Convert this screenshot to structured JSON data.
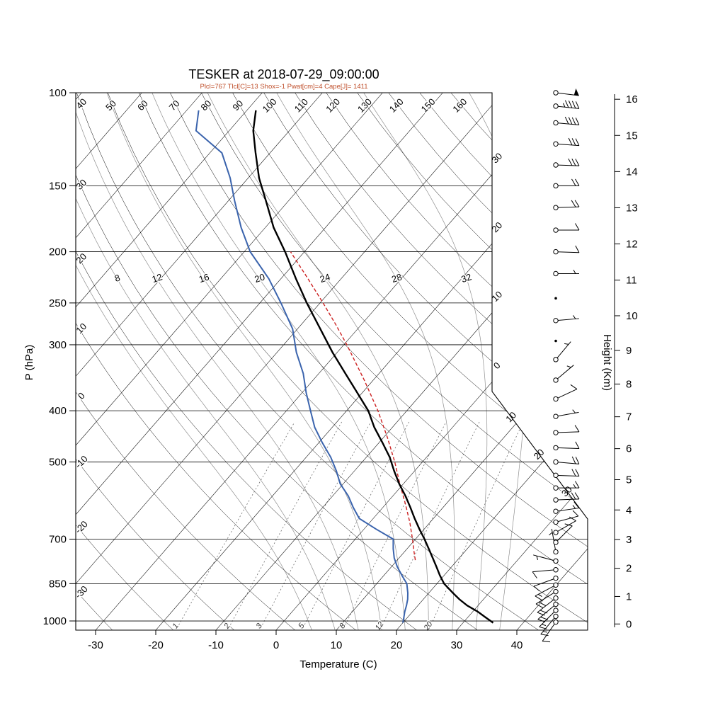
{
  "title": "TESKER at 2018-07-29_09:00:00",
  "subtitle": "Plcl=767 Tlcl[C]=13 Shox=-1 Pwat[cm]=4 Cape[J]= 1411",
  "indices": {
    "Plcl": 767,
    "Tlcl_C": 13,
    "Shox": -1,
    "Pwat_cm": 4,
    "Cape_J": 1411
  },
  "axes": {
    "pressure_label": "P (hPa)",
    "pressure_ticks": [
      100,
      150,
      200,
      250,
      300,
      400,
      500,
      700,
      850,
      1000
    ],
    "temperature_label": "Temperature (C)",
    "temperature_ticks": [
      -30,
      -20,
      -10,
      0,
      10,
      20,
      30,
      40
    ],
    "height_label": "Height (Km)",
    "height_ticks": [
      0,
      1,
      2,
      3,
      4,
      5,
      6,
      7,
      8,
      9,
      10,
      11,
      12,
      13,
      14,
      15,
      16
    ]
  },
  "grid": {
    "dry_adiabat_top_labels": [
      50,
      60,
      70,
      80,
      90,
      100,
      110,
      120,
      130,
      140,
      150,
      160
    ],
    "dry_adiabat_left_labels": [
      40,
      30,
      20,
      10,
      0,
      -10,
      -20,
      -30
    ],
    "isotherm_right_labels": [
      "30",
      "20",
      "10",
      "0"
    ],
    "isotherm_right_values": [
      -30,
      -20,
      -10,
      0
    ],
    "isotherm_slant_labels": [
      "10",
      "20",
      "30"
    ],
    "isotherm_slant_values": [
      10,
      20,
      30
    ],
    "moist_adiabat_labels": [
      8,
      12,
      16,
      20,
      24,
      28,
      32
    ],
    "moist_adiabats_drawn": [
      4,
      8,
      12,
      16,
      20,
      24,
      28,
      32,
      36
    ],
    "mixing_ratio_labels": [
      1,
      2,
      3,
      5,
      8,
      12,
      20
    ]
  },
  "chart_data": {
    "type": "skewt-logp",
    "station": "TESKER",
    "datetime": "2018-07-29_09:00:00",
    "pressure_range_hPa": [
      100,
      1050
    ],
    "temperature_range_C": [
      -30,
      40
    ],
    "pressure_hPa": [
      1008,
      985,
      960,
      935,
      910,
      885,
      850,
      820,
      790,
      760,
      730,
      700,
      670,
      640,
      610,
      580,
      550,
      520,
      490,
      460,
      430,
      400,
      370,
      340,
      310,
      280,
      250,
      225,
      200,
      180,
      160,
      145,
      130,
      118,
      108
    ],
    "temperature_C": [
      35,
      33,
      30.8,
      28.2,
      26,
      24,
      21.2,
      19.3,
      17.5,
      15.6,
      13.6,
      11.5,
      9.2,
      6.9,
      4.6,
      2.1,
      -0.7,
      -3.4,
      -6.1,
      -9.4,
      -13,
      -16.4,
      -20.8,
      -25.6,
      -30.8,
      -36.2,
      -42.2,
      -47.5,
      -53.2,
      -58.6,
      -63.8,
      -68.2,
      -72.4,
      -76,
      -78.5
    ],
    "dewpoint_C": [
      20,
      19.4,
      18.7,
      18.1,
      17.4,
      16.5,
      15,
      13,
      11,
      9.2,
      7.7,
      6.3,
      2,
      -2.3,
      -4.9,
      -7.4,
      -10.5,
      -13,
      -15.9,
      -19.4,
      -22.9,
      -26,
      -29.3,
      -32.6,
      -36.8,
      -40.8,
      -46.5,
      -52,
      -59,
      -64,
      -69,
      -73,
      -78,
      -85.5,
      -88
    ],
    "parcel": {
      "pressure_hPa": [
        767,
        740,
        700,
        650,
        600,
        550,
        500,
        450,
        400,
        350,
        300,
        275,
        250,
        225,
        200
      ],
      "temperature_C": [
        13,
        11.6,
        9.5,
        6.6,
        3.2,
        -0.6,
        -4.6,
        -9.3,
        -14.8,
        -21.5,
        -29.5,
        -34.2,
        -39.5,
        -45.5,
        -52.3
      ]
    },
    "wind": [
      {
        "p": 1005,
        "spd_kt": 10,
        "dir_deg": 215
      },
      {
        "p": 980,
        "spd_kt": 15,
        "dir_deg": 220
      },
      {
        "p": 955,
        "spd_kt": 15,
        "dir_deg": 225
      },
      {
        "p": 930,
        "spd_kt": 20,
        "dir_deg": 230
      },
      {
        "p": 905,
        "spd_kt": 20,
        "dir_deg": 232
      },
      {
        "p": 880,
        "spd_kt": 18,
        "dir_deg": 238
      },
      {
        "p": 855,
        "spd_kt": 15,
        "dir_deg": 242
      },
      {
        "p": 830,
        "spd_kt": 12,
        "dir_deg": 250
      },
      {
        "p": 800,
        "spd_kt": 8,
        "dir_deg": 265
      },
      {
        "p": 770,
        "spd_kt": 5,
        "dir_deg": 285
      },
      {
        "p": 740,
        "spd_kt": 5,
        "dir_deg": 350
      },
      {
        "p": 710,
        "spd_kt": 8,
        "dir_deg": 45
      },
      {
        "p": 680,
        "spd_kt": 10,
        "dir_deg": 60
      },
      {
        "p": 650,
        "spd_kt": 12,
        "dir_deg": 75
      },
      {
        "p": 620,
        "spd_kt": 15,
        "dir_deg": 82
      },
      {
        "p": 590,
        "spd_kt": 18,
        "dir_deg": 88
      },
      {
        "p": 560,
        "spd_kt": 15,
        "dir_deg": 90
      },
      {
        "p": 530,
        "spd_kt": 18,
        "dir_deg": 92
      },
      {
        "p": 500,
        "spd_kt": 20,
        "dir_deg": 95
      },
      {
        "p": 470,
        "spd_kt": 12,
        "dir_deg": 92
      },
      {
        "p": 440,
        "spd_kt": 8,
        "dir_deg": 88
      },
      {
        "p": 410,
        "spd_kt": 5,
        "dir_deg": 80
      },
      {
        "p": 380,
        "spd_kt": 8,
        "dir_deg": 65
      },
      {
        "p": 350,
        "spd_kt": 6,
        "dir_deg": 50
      },
      {
        "p": 320,
        "spd_kt": 5,
        "dir_deg": 40
      },
      {
        "p": 295,
        "spd_kt": 2,
        "dir_deg": 0
      },
      {
        "p": 270,
        "spd_kt": 4,
        "dir_deg": 85
      },
      {
        "p": 245,
        "spd_kt": 2,
        "dir_deg": 0
      },
      {
        "p": 220,
        "spd_kt": 5,
        "dir_deg": 90
      },
      {
        "p": 200,
        "spd_kt": 8,
        "dir_deg": 92
      },
      {
        "p": 182,
        "spd_kt": 12,
        "dir_deg": 90
      },
      {
        "p": 165,
        "spd_kt": 18,
        "dir_deg": 88
      },
      {
        "p": 150,
        "spd_kt": 22,
        "dir_deg": 90
      },
      {
        "p": 137,
        "spd_kt": 28,
        "dir_deg": 92
      },
      {
        "p": 125,
        "spd_kt": 32,
        "dir_deg": 94
      },
      {
        "p": 114,
        "spd_kt": 38,
        "dir_deg": 95
      },
      {
        "p": 106,
        "spd_kt": 45,
        "dir_deg": 96
      },
      {
        "p": 100,
        "spd_kt": 52,
        "dir_deg": 97
      }
    ],
    "colors": {
      "temperature": "#000000",
      "dewpoint": "#3b64ad",
      "parcel": "#cc2222",
      "subtitle": "#bf4e2a"
    }
  }
}
